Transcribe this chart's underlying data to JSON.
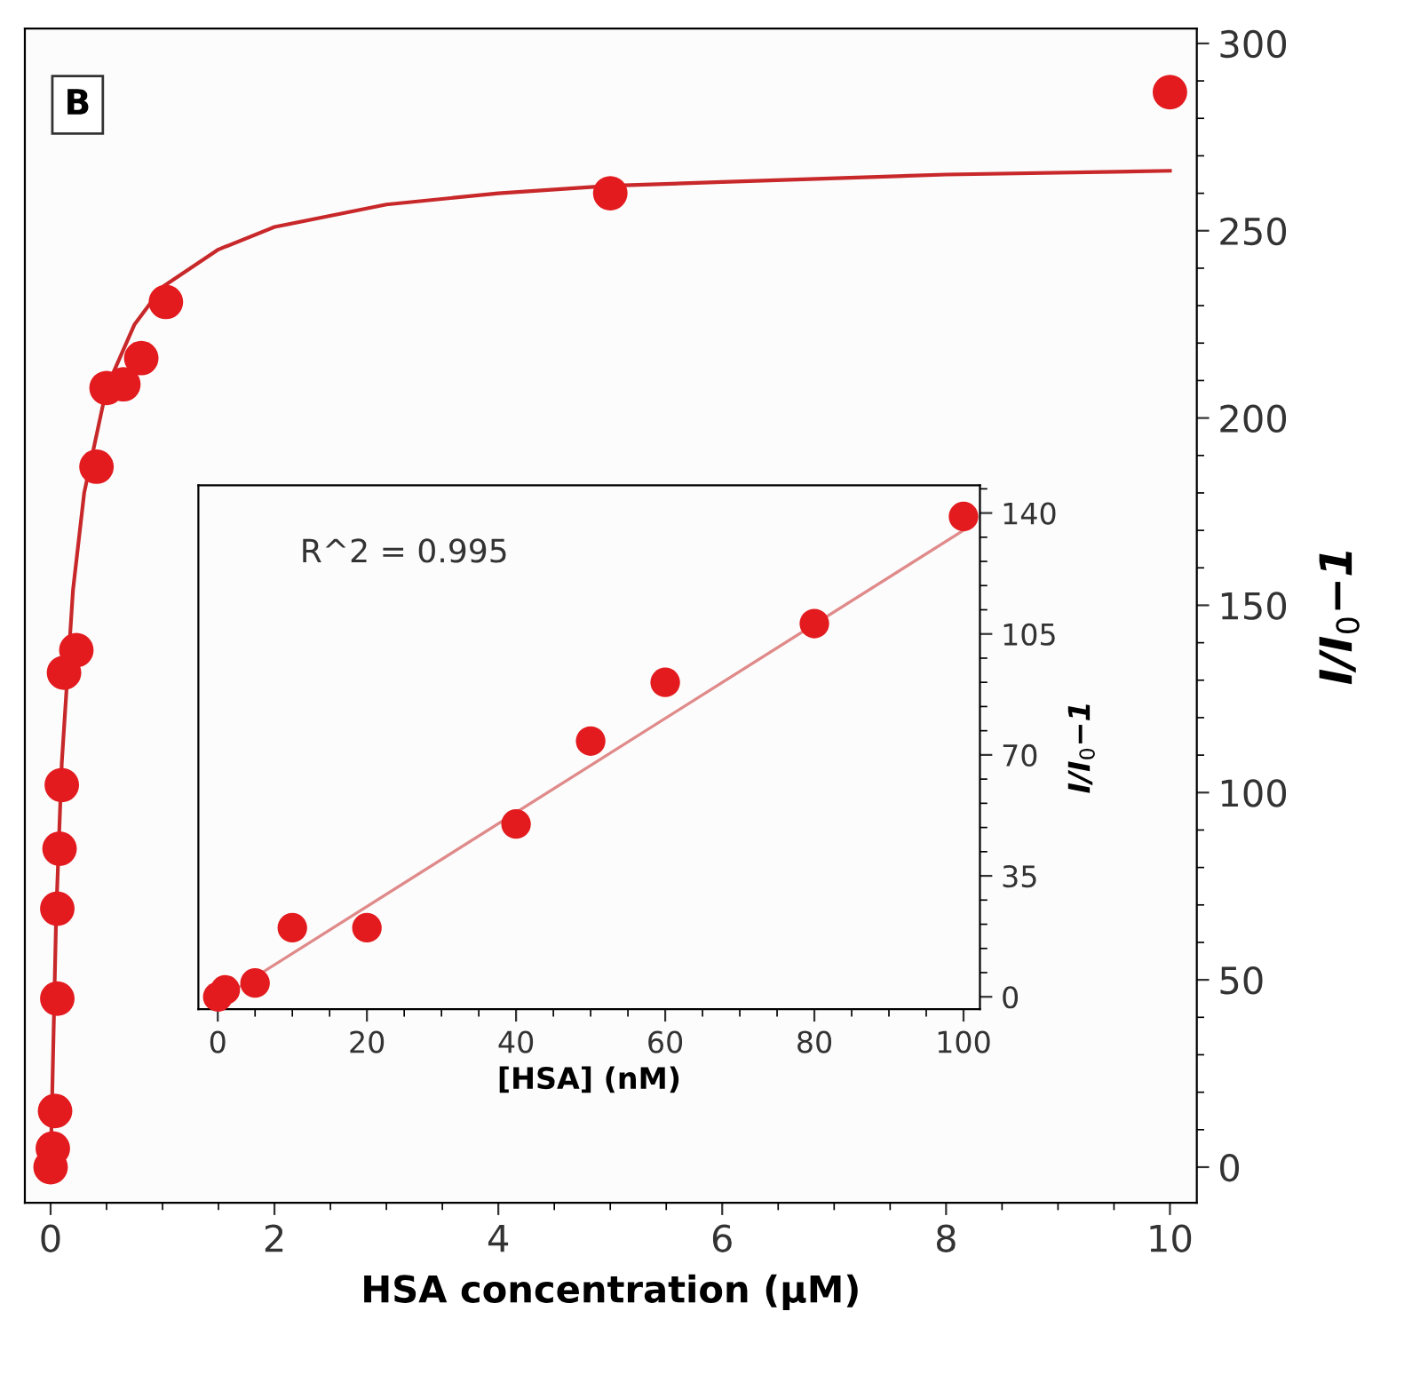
{
  "chart_data": [
    {
      "type": "scatter",
      "xlabel": "HSA concentration (μM)",
      "ylabel": "I/I$_{0}$−1",
      "annotations": [
        "B"
      ],
      "xlim": [
        -0.23,
        10.24
      ],
      "ylim": [
        -9.5,
        304
      ],
      "xticks": [
        0,
        2,
        4,
        6,
        8,
        10
      ],
      "yticks": [
        0,
        50,
        100,
        150,
        200,
        250,
        300
      ],
      "grid": false,
      "legend": false,
      "marker": "circle",
      "series": [
        {
          "color": "#e31b1f",
          "x": [
            0,
            0.02,
            0.04,
            0.06,
            0.06,
            0.08,
            0.1,
            0.12,
            0.23,
            0.41,
            0.5,
            0.65,
            0.81,
            1.03,
            5.0,
            10
          ],
          "values": [
            0,
            5,
            15,
            45,
            69,
            85,
            102,
            132,
            138,
            187,
            208,
            209,
            216,
            231,
            260,
            287
          ]
        },
        {
          "type": "line",
          "color": "#c8282a",
          "line_style": "solid",
          "marker": "none",
          "x": [
            0,
            0.05,
            0.1,
            0.2,
            0.3,
            0.5,
            0.75,
            1,
            1.5,
            2,
            3,
            4,
            5,
            6,
            8,
            10
          ],
          "values": [
            0,
            67.5,
            108,
            154,
            180,
            208,
            225,
            235,
            245,
            251,
            257,
            260,
            262,
            263,
            265,
            266
          ]
        }
      ]
    },
    {
      "type": "scatter",
      "xlabel": "[HSA] (nM)",
      "ylabel": "I/I$_{0}$−1",
      "annotations": [
        "R^2 = 0.995"
      ],
      "xlim": [
        -2.6,
        102.2
      ],
      "ylim": [
        -3.6,
        148
      ],
      "xticks": [
        0,
        20,
        40,
        60,
        80,
        100
      ],
      "yticks": [
        0,
        35,
        70,
        105,
        140
      ],
      "grid": false,
      "legend": false,
      "marker": "circle",
      "series": [
        {
          "color": "#e31b1f",
          "x": [
            0,
            1,
            5,
            10,
            20,
            40,
            50,
            60,
            80,
            100
          ],
          "values": [
            0,
            2,
            4,
            20,
            20,
            50,
            74,
            91,
            108,
            139
          ]
        },
        {
          "type": "line",
          "color": "#e08a8a",
          "line_style": "solid",
          "marker": "none",
          "x": [
            3,
            100
          ],
          "values": [
            3,
            135
          ]
        }
      ]
    }
  ]
}
